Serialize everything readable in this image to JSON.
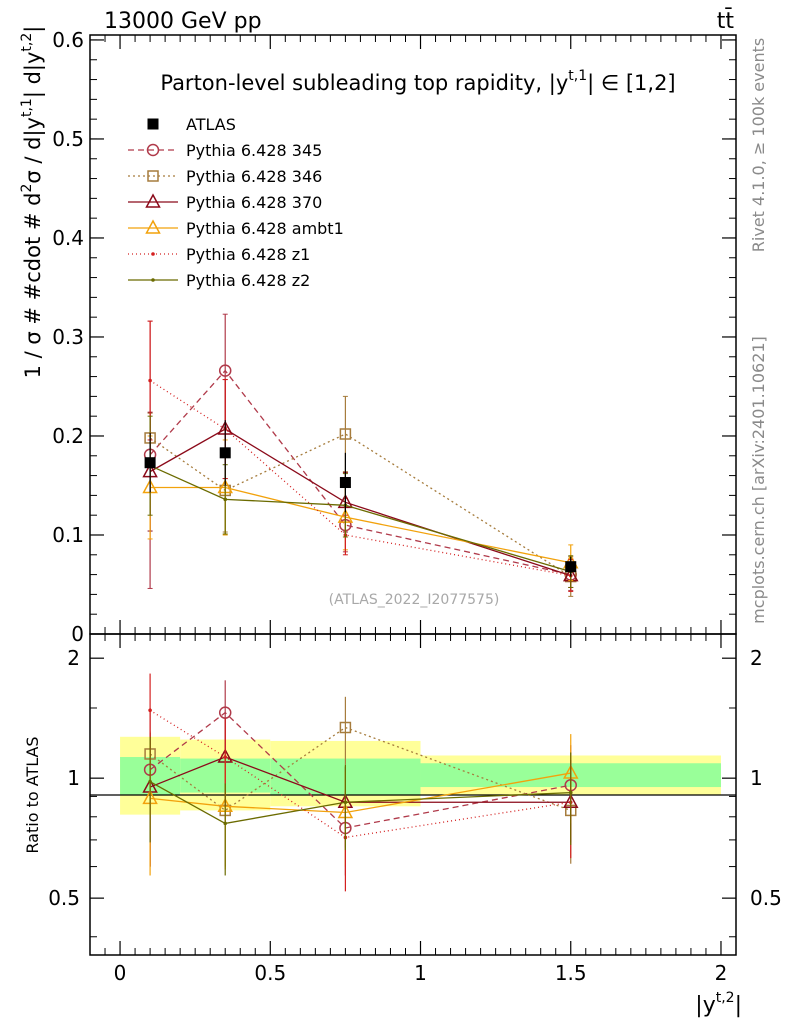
{
  "header": {
    "energy_label": "13000 GeV pp",
    "process_label": "tt̄",
    "side_label_top": "Rivet 4.1.0, ≥ 100k events",
    "side_label_bottom": "mcplots.cern.ch [arXiv:2401.10621]",
    "watermark": "(ATLAS_2022_I2077575)"
  },
  "chart_data": [
    {
      "type": "line",
      "panel": "main",
      "title": "Parton-level subleading top rapidity, |y^{t,1}| ∈ [1,2]",
      "title_main": "Parton-level subleading top rapidity, |y",
      "title_sup": "t,1",
      "title_end": "| ∈ [1,2]",
      "ylabel": "1 / σ # #cdot # d²σ / d|y^{t,1}| d|y^{t,2}|",
      "ylabel_parts": [
        "1 / σ # #cdot # d",
        "2",
        "σ / d|y",
        "t,1",
        "| d|y",
        "t,2",
        "|"
      ],
      "xlim": [
        -0.1,
        2.05
      ],
      "ylim": [
        0,
        0.605
      ],
      "yticks": [
        0.1,
        0.2,
        0.3,
        0.4,
        0.5,
        0.6
      ],
      "ytick_labels": [
        "0.1",
        "0.2",
        "0.3",
        "0.4",
        "0.5",
        "0.6"
      ],
      "bin_edges": [
        0,
        0.2,
        0.5,
        1.0,
        2.0
      ],
      "x": [
        0.1,
        0.35,
        0.75,
        1.5
      ],
      "reference": {
        "name": "ATLAS",
        "values": [
          0.173,
          0.183,
          0.153,
          0.068
        ],
        "errors": [
          0.03,
          0.033,
          0.03,
          0.01
        ],
        "color": "#000000"
      },
      "series": [
        {
          "name": "Pythia 6.428 345",
          "color": "#b03a4a",
          "dash": "6,4",
          "marker": "circle",
          "values": [
            0.181,
            0.266,
            0.11,
            0.06
          ],
          "errors": [
            0.135,
            0.057,
            0.027,
            0.016
          ]
        },
        {
          "name": "Pythia 6.428 346",
          "color": "#a67c3d",
          "dash": "2,3",
          "marker": "square",
          "values": [
            0.198,
            0.145,
            0.202,
            0.058
          ],
          "errors": [
            0.025,
            0.042,
            0.038,
            0.02
          ]
        },
        {
          "name": "Pythia 6.428 370",
          "color": "#8b0a1a",
          "dash": "",
          "marker": "triangle",
          "values": [
            0.164,
            0.207,
            0.133,
            0.059
          ],
          "errors": [
            0.06,
            0.05,
            0.03,
            0.012
          ]
        },
        {
          "name": "Pythia 6.428 ambt1",
          "color": "#f2a20c",
          "dash": "",
          "marker": "triangle",
          "values": [
            0.148,
            0.148,
            0.118,
            0.072
          ],
          "errors": [
            0.052,
            0.048,
            0.033,
            0.018
          ]
        },
        {
          "name": "Pythia 6.428 z1",
          "color": "#d42020",
          "dash": "1,3",
          "marker": "dot",
          "values": [
            0.256,
            0.207,
            0.1,
            0.059
          ],
          "errors": [
            0.06,
            0.05,
            0.02,
            0.016
          ]
        },
        {
          "name": "Pythia 6.428 z2",
          "color": "#6b6b00",
          "dash": "",
          "marker": "dot",
          "values": [
            0.17,
            0.136,
            0.13,
            0.063
          ],
          "errors": [
            0.05,
            0.035,
            0.032,
            0.016
          ]
        }
      ]
    },
    {
      "type": "line",
      "panel": "ratio",
      "ylabel": "Ratio to ATLAS",
      "xlabel": "|y^{t,2}|",
      "xlabel_main": "|y",
      "xlabel_sup": "t,2",
      "xlabel_end": "|",
      "xlim": [
        -0.1,
        2.05
      ],
      "ylim": [
        0.36,
        2.3
      ],
      "xticks": [
        0,
        0.5,
        1,
        1.5,
        2
      ],
      "xtick_labels": [
        "0",
        "0.5",
        "1",
        "1.5",
        "2"
      ],
      "yticks": [
        0.5,
        1,
        2
      ],
      "ytick_labels": [
        "0.5",
        "1",
        "2"
      ],
      "bands": [
        {
          "x0": 0.0,
          "x1": 0.2,
          "green": [
            0.91,
            1.13
          ],
          "yellow": [
            0.81,
            1.27
          ]
        },
        {
          "x0": 0.2,
          "x1": 0.5,
          "green": [
            0.92,
            1.12
          ],
          "yellow": [
            0.83,
            1.25
          ]
        },
        {
          "x0": 0.5,
          "x1": 1.0,
          "green": [
            0.91,
            1.12
          ],
          "yellow": [
            0.85,
            1.24
          ]
        },
        {
          "x0": 1.0,
          "x1": 2.0,
          "green": [
            0.95,
            1.09
          ],
          "yellow": [
            0.91,
            1.14
          ]
        }
      ],
      "x": [
        0.1,
        0.35,
        0.75,
        1.5
      ],
      "series": [
        {
          "name": "Pythia 6.428 345",
          "values": [
            1.05,
            1.46,
            0.75,
            0.96
          ],
          "errors": [
            0.45,
            0.3,
            0.18,
            0.25
          ]
        },
        {
          "name": "Pythia 6.428 346",
          "values": [
            1.15,
            0.83,
            1.34,
            0.83
          ],
          "errors": [
            0.16,
            0.23,
            0.26,
            0.22
          ]
        },
        {
          "name": "Pythia 6.428 370",
          "values": [
            0.95,
            1.13,
            0.87,
            0.87
          ],
          "errors": [
            0.35,
            0.28,
            0.2,
            0.18
          ]
        },
        {
          "name": "Pythia 6.428 ambt1",
          "values": [
            0.89,
            0.85,
            0.82,
            1.03
          ],
          "errors": [
            0.32,
            0.26,
            0.22,
            0.26
          ]
        },
        {
          "name": "Pythia 6.428 z1",
          "values": [
            1.48,
            1.13,
            0.71,
            0.87
          ],
          "errors": [
            0.35,
            0.28,
            0.19,
            0.24
          ]
        },
        {
          "name": "Pythia 6.428 z2",
          "values": [
            0.98,
            0.77,
            0.87,
            0.92
          ],
          "errors": [
            0.29,
            0.2,
            0.21,
            0.24
          ]
        }
      ]
    }
  ]
}
